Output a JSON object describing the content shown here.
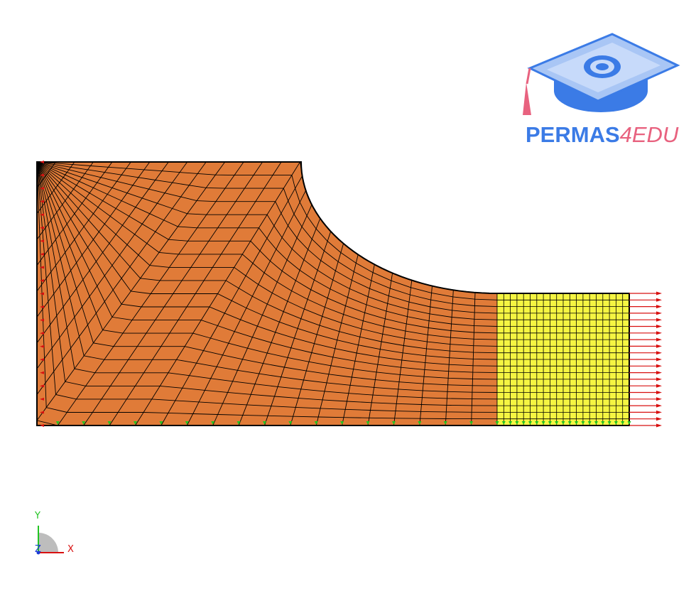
{
  "logo": {
    "brand_main": "PERMAS",
    "brand_sub": "4EDU"
  },
  "triad": {
    "y_label": "Y",
    "z_label": "Z",
    "x_label": "X"
  },
  "colors": {
    "mesh_fill": "#e07b38",
    "block_fill": "#f5f542",
    "mesh_line": "#000000",
    "load_arrow": "#d81010",
    "support_marker": "#22c422",
    "logo_blue": "#3b7be6",
    "logo_pink": "#e8627f"
  },
  "icons": [
    "graduation-cap-logo-icon",
    "coordinate-triad-icon",
    "load-arrow-icon",
    "support-marker-icon"
  ]
}
